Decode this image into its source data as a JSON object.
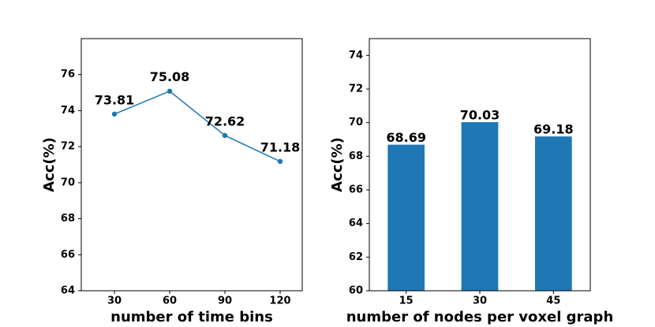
{
  "chart_data": [
    {
      "type": "line",
      "x": [
        30,
        60,
        90,
        120
      ],
      "values": [
        73.81,
        75.08,
        72.62,
        71.18
      ],
      "color": "#1f77b4",
      "xlabel": "number of time bins",
      "ylabel": "Acc(%)",
      "xlim": [
        12,
        132
      ],
      "xticks": [
        30,
        60,
        90,
        120
      ],
      "ylim": [
        64,
        78
      ],
      "yticks": [
        64,
        66,
        68,
        70,
        72,
        74,
        76
      ]
    },
    {
      "type": "bar",
      "categories": [
        "15",
        "30",
        "45"
      ],
      "values": [
        68.69,
        70.03,
        69.18
      ],
      "color": "#1f77b4",
      "xlabel": "number of nodes per voxel graph",
      "ylabel": "Acc(%)",
      "ylim": [
        60,
        75
      ],
      "yticks": [
        60,
        62,
        64,
        66,
        68,
        70,
        72,
        74
      ]
    }
  ]
}
